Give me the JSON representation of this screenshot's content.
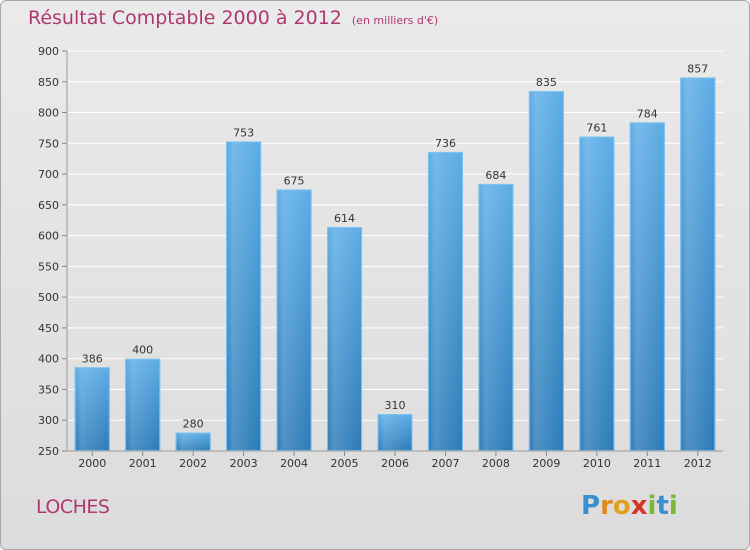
{
  "chart_data": {
    "type": "bar",
    "title": "Résultat Comptable 2000 à 2012",
    "unit_label": "(en milliers d'€)",
    "categories": [
      "2000",
      "2001",
      "2002",
      "2003",
      "2004",
      "2005",
      "2006",
      "2007",
      "2008",
      "2009",
      "2010",
      "2011",
      "2012"
    ],
    "values": [
      386,
      400,
      280,
      753,
      675,
      614,
      310,
      736,
      684,
      835,
      761,
      784,
      857
    ],
    "ylim": [
      250,
      900
    ],
    "yticks": [
      250,
      300,
      350,
      400,
      450,
      500,
      550,
      600,
      650,
      700,
      750,
      800,
      850,
      900
    ],
    "grid": true,
    "xlabel": "",
    "ylabel": "",
    "bar_color_top": "#5aace6",
    "bar_color_bottom": "#2a7ab8"
  },
  "location": "LOCHES",
  "brand": {
    "name": "Proxiti",
    "letters": [
      "P",
      "r",
      "o",
      "x",
      "i",
      "t",
      "i"
    ],
    "colors": [
      "#3a8fd0",
      "#e08a1e",
      "#e0a21e",
      "#d8342a",
      "#7ab83a",
      "#3a8fd0",
      "#7ab83a"
    ]
  },
  "colors": {
    "title": "#b03870",
    "grid": "#ffffff",
    "axis_text": "#333333"
  }
}
